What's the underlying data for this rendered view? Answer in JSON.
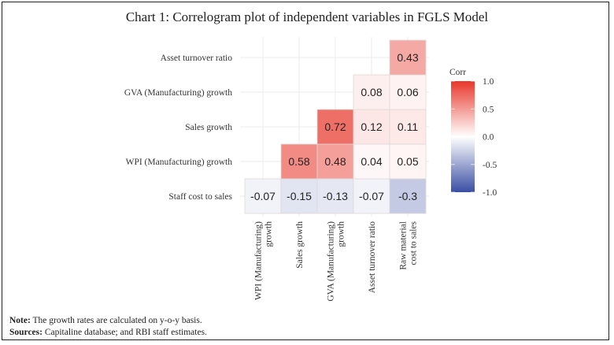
{
  "title": "Chart 1: Correlogram plot of independent variables in FGLS Model",
  "chart_data": {
    "type": "heatmap",
    "title": "Chart 1: Correlogram plot of independent variables in FGLS Model",
    "x_labels": [
      [
        "WPI (Manufacturing)",
        "growth"
      ],
      [
        "Sales growth"
      ],
      [
        "GVA (Manufacturing)",
        "growth"
      ],
      [
        "Asset turnover ratio"
      ],
      [
        "Raw material",
        "cost to sales"
      ]
    ],
    "y_labels": [
      "Staff cost to sales",
      "WPI (Manufacturing) growth",
      "Sales growth",
      "GVA (Manufacturing) growth",
      "Asset turnover ratio"
    ],
    "cells": [
      {
        "row": 0,
        "col": 0,
        "value": -0.07
      },
      {
        "row": 0,
        "col": 1,
        "value": -0.15
      },
      {
        "row": 0,
        "col": 2,
        "value": -0.13
      },
      {
        "row": 0,
        "col": 3,
        "value": -0.07
      },
      {
        "row": 0,
        "col": 4,
        "value": -0.3
      },
      {
        "row": 1,
        "col": 1,
        "value": 0.58
      },
      {
        "row": 1,
        "col": 2,
        "value": 0.48
      },
      {
        "row": 1,
        "col": 3,
        "value": 0.04
      },
      {
        "row": 1,
        "col": 4,
        "value": 0.05
      },
      {
        "row": 2,
        "col": 2,
        "value": 0.72
      },
      {
        "row": 2,
        "col": 3,
        "value": 0.12
      },
      {
        "row": 2,
        "col": 4,
        "value": 0.11
      },
      {
        "row": 3,
        "col": 3,
        "value": 0.08
      },
      {
        "row": 3,
        "col": 4,
        "value": 0.06
      },
      {
        "row": 4,
        "col": 4,
        "value": 0.43
      }
    ],
    "legend": {
      "title": "Corr",
      "ticks": [
        "1.0",
        "0.5",
        "0.0",
        "-0.5",
        "-1.0"
      ],
      "tick_values": [
        1.0,
        0.5,
        0.0,
        -0.5,
        -1.0
      ],
      "range": [
        -1.0,
        1.0
      ],
      "high_color": "#e8372b",
      "mid_color": "#ffffff",
      "low_color": "#3a4ea3",
      "placement": "right"
    },
    "grid": true
  },
  "notes": {
    "note_label": "Note:",
    "note_text": " The growth rates are calculated on y-o-y basis.",
    "sources_label": "Sources:",
    "sources_text": " Capitaline database; and RBI staff estimates."
  }
}
